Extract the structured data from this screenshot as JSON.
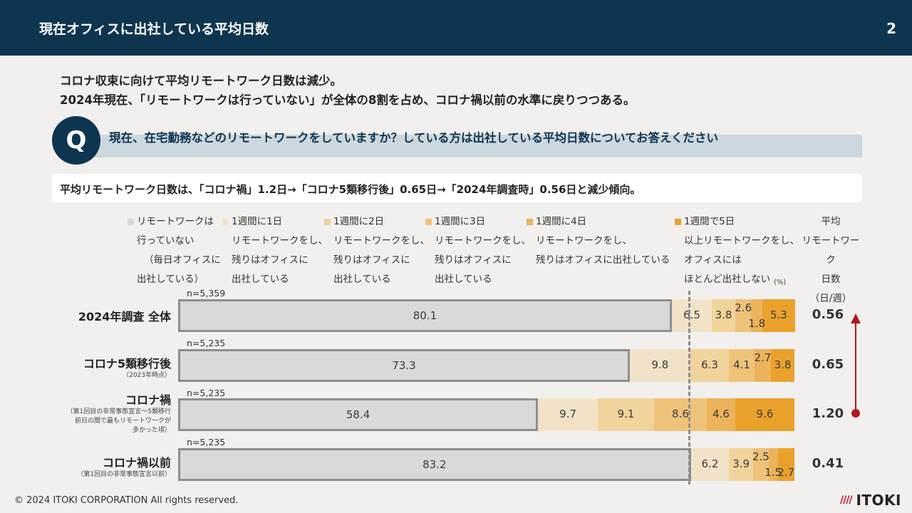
{
  "header": {
    "title": "現在オフィスに出社している平均日数",
    "page_number": "2"
  },
  "lead": {
    "line1": "コロナ収束に向けて平均リモートワーク日数は減少。",
    "line2": "2024年現在、「リモートワークは行っていない」が全体の8割を占め、コロナ禍以前の水準に戻りつつある。"
  },
  "question": {
    "mark": "Q",
    "text": "現在、在宅勤務などのリモートワークをしていますか？している方は出社している平均日数についてお答えください"
  },
  "summary": "平均リモートワーク日数は、「コロナ禍」1.2日→「コロナ5類移行後」0.65日→「2024年調査時」0.56日と減少傾向。",
  "avg_header": [
    "平均",
    "リモートワーク",
    "日数",
    "（日/週）"
  ],
  "unit_label": "(%)",
  "chart_data": {
    "type": "bar",
    "orientation": "horizontal",
    "stacked": true,
    "unit": "%",
    "categories": [
      "2024年調査 全体",
      "コロナ5類移行後",
      "コロナ禍",
      "コロナ禍以前"
    ],
    "category_notes": [
      "",
      "（2023年時点）",
      "（第1回目の非常事態宣言～5類移行前日の間で最もリモートワークが多かった頃）",
      "（第1回目の非常事態宣言以前）"
    ],
    "category_note_lines": [
      [],
      [
        "（2023年時点）"
      ],
      [
        "（第1回目の非常事態宣言～5類移行",
        "前日の間で最もリモートワークが",
        "多かった頃）"
      ],
      [
        "（第1回目の非常事態宣言以前）"
      ]
    ],
    "n_labels": [
      "n=5,359",
      "n=5,235",
      "n=5,235",
      "n=5,235"
    ],
    "series": [
      {
        "name": "リモートワークは行っていない（毎日オフィスに出社している）",
        "legend_lines": [
          "リモートワークは",
          "行っていない",
          "（毎日オフィスに",
          "出社している）"
        ],
        "color": "#d9d9d9",
        "values": [
          80.1,
          73.3,
          58.4,
          83.2
        ]
      },
      {
        "name": "1週間に1日リモートワークをし、残りはオフィスに出社している",
        "legend_lines": [
          "1週間に1日",
          "リモートワークをし、",
          "残りはオフィスに",
          "出社している"
        ],
        "color": "#f2e3c8",
        "values": [
          6.5,
          9.8,
          9.7,
          6.2
        ]
      },
      {
        "name": "1週間に2日リモートワークをし、残りはオフィスに出社している",
        "legend_lines": [
          "1週間に2日",
          "リモートワークをし、",
          "残りはオフィスに",
          "出社している"
        ],
        "color": "#f1d39c",
        "values": [
          3.8,
          6.3,
          9.1,
          3.9
        ]
      },
      {
        "name": "1週間に3日リモートワークをし、残りはオフィスに出社している",
        "legend_lines": [
          "1週間に3日",
          "リモートワークをし、",
          "残りはオフィスに",
          "出社している"
        ],
        "color": "#efc27a",
        "values": [
          2.6,
          4.1,
          8.6,
          2.5
        ]
      },
      {
        "name": "1週間に4日リモートワークをし、残りはオフィスに出社している",
        "legend_lines": [
          "1週間に4日",
          "リモートワークをし、",
          "残りはオフィスに出社している"
        ],
        "color": "#ecb35a",
        "values": [
          1.8,
          2.7,
          4.6,
          1.5
        ]
      },
      {
        "name": "1週間で5日以上リモートワークをし、オフィスにはほとんど出社しない",
        "legend_lines": [
          "1週間で5日",
          "以上リモートワークをし、",
          "オフィスには",
          "ほとんど出社しない"
        ],
        "color": "#eaa12c",
        "values": [
          5.3,
          3.8,
          9.6,
          2.7
        ]
      }
    ],
    "average_days": [
      "0.56",
      "0.65",
      "1.20",
      "0.41"
    ],
    "xlim": [
      0,
      100
    ],
    "legend_position": "top"
  },
  "footer": {
    "copyright": "© 2024 ITOKI CORPORATION All rights reserved.",
    "logo_mark": "////",
    "logo_text": "ITOKI"
  }
}
